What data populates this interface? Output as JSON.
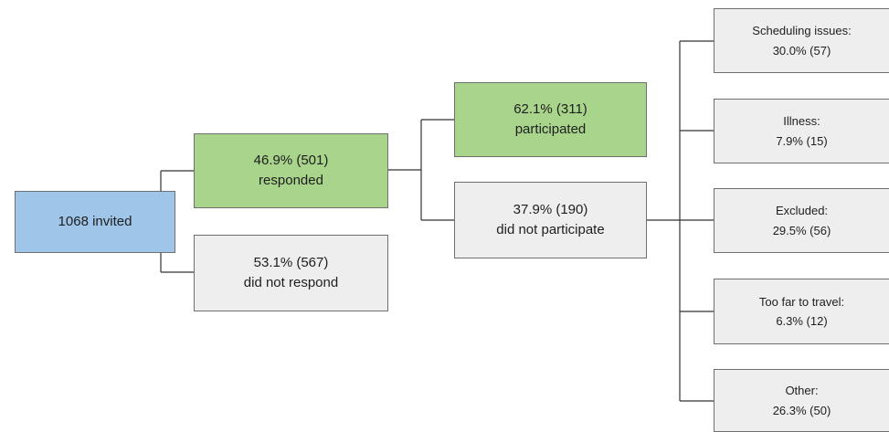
{
  "colors": {
    "blue": "#9fc5e8",
    "green": "#a8d48b",
    "grey": "#eeeeee",
    "line": "#333333",
    "border": "#6f6f6f"
  },
  "nodes": {
    "invited": {
      "line1": "1068 invited"
    },
    "responded": {
      "line1": "46.9% (501)",
      "line2": "responded"
    },
    "not_respond": {
      "line1": "53.1% (567)",
      "line2": "did not respond"
    },
    "participated": {
      "line1": "62.1% (311)",
      "line2": "participated"
    },
    "not_participate": {
      "line1": "37.9% (190)",
      "line2": "did not participate"
    },
    "scheduling": {
      "line1": "Scheduling issues:",
      "line2": "30.0% (57)"
    },
    "illness": {
      "line1": "Illness:",
      "line2": "7.9% (15)"
    },
    "excluded": {
      "line1": "Excluded:",
      "line2": "29.5% (56)"
    },
    "too_far": {
      "line1": "Too far to travel:",
      "line2": "6.3% (12)"
    },
    "other": {
      "line1": "Other:",
      "line2": "26.3% (50)"
    }
  }
}
